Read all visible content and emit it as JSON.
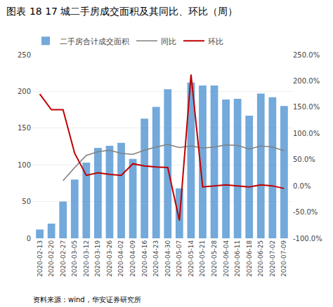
{
  "chart_data": {
    "type": "bar",
    "title": "图表 18 17 城二手房成交面积及其同比、环比（周）",
    "annotations": [
      "资料来源：wind，华安证券研究所"
    ],
    "categories": [
      "2020-02-13",
      "2020-02-20",
      "2020-02-27",
      "2020-03-05",
      "2020-03-12",
      "2020-03-19",
      "2020-03-26",
      "2020-04-02",
      "2020-04-09",
      "2020-04-16",
      "2020-04-23",
      "2020-04-30",
      "2020-05-07",
      "2020-05-14",
      "2020-05-21",
      "2020-05-28",
      "2020-06-04",
      "2020-06-11",
      "2020-06-18",
      "2020-06-25",
      "2020-07-02",
      "2020-07-09"
    ],
    "series": [
      {
        "name": "二手房合计成交面积",
        "type": "bar",
        "color": "#5B9BD5",
        "values": [
          12,
          20,
          50,
          80,
          103,
          123,
          126,
          130,
          108,
          163,
          179,
          203,
          68,
          212,
          208,
          208,
          189,
          190,
          167,
          197,
          192,
          180
        ]
      },
      {
        "name": "同比",
        "type": "line",
        "color": "#808080",
        "axis": "y2",
        "values": [
          null,
          null,
          0.1,
          0.35,
          0.58,
          0.65,
          0.68,
          0.62,
          0.6,
          0.68,
          0.74,
          0.79,
          0.73,
          0.76,
          0.72,
          0.74,
          0.78,
          0.77,
          0.7,
          0.76,
          0.74,
          0.67
        ]
      },
      {
        "name": "环比",
        "type": "line",
        "color": "#C00000",
        "axis": "y2",
        "values": [
          1.75,
          1.45,
          1.45,
          0.62,
          0.2,
          0.25,
          0.22,
          0.2,
          0.42,
          0.38,
          0.36,
          0.35,
          -0.66,
          2.12,
          -0.02,
          0.0,
          0.02,
          0.0,
          -0.02,
          0.02,
          0.0,
          -0.05
        ]
      }
    ],
    "ylim": [
      0,
      250
    ],
    "yticks": [
      0,
      50,
      100,
      150,
      200,
      250
    ],
    "y2lim": [
      -1.0,
      2.5
    ],
    "y2ticks": [
      {
        "value": -1.0,
        "label": "-100.0%"
      },
      {
        "value": -0.5,
        "label": "-50.0%"
      },
      {
        "value": 0.0,
        "label": "0.0%"
      },
      {
        "value": 0.5,
        "label": "50.0%"
      },
      {
        "value": 1.0,
        "label": "100.0%"
      },
      {
        "value": 1.5,
        "label": "150.0%"
      },
      {
        "value": 2.0,
        "label": "200.0%"
      },
      {
        "value": 2.5,
        "label": "250.0%"
      }
    ],
    "grid": true,
    "legend": "upper left"
  }
}
